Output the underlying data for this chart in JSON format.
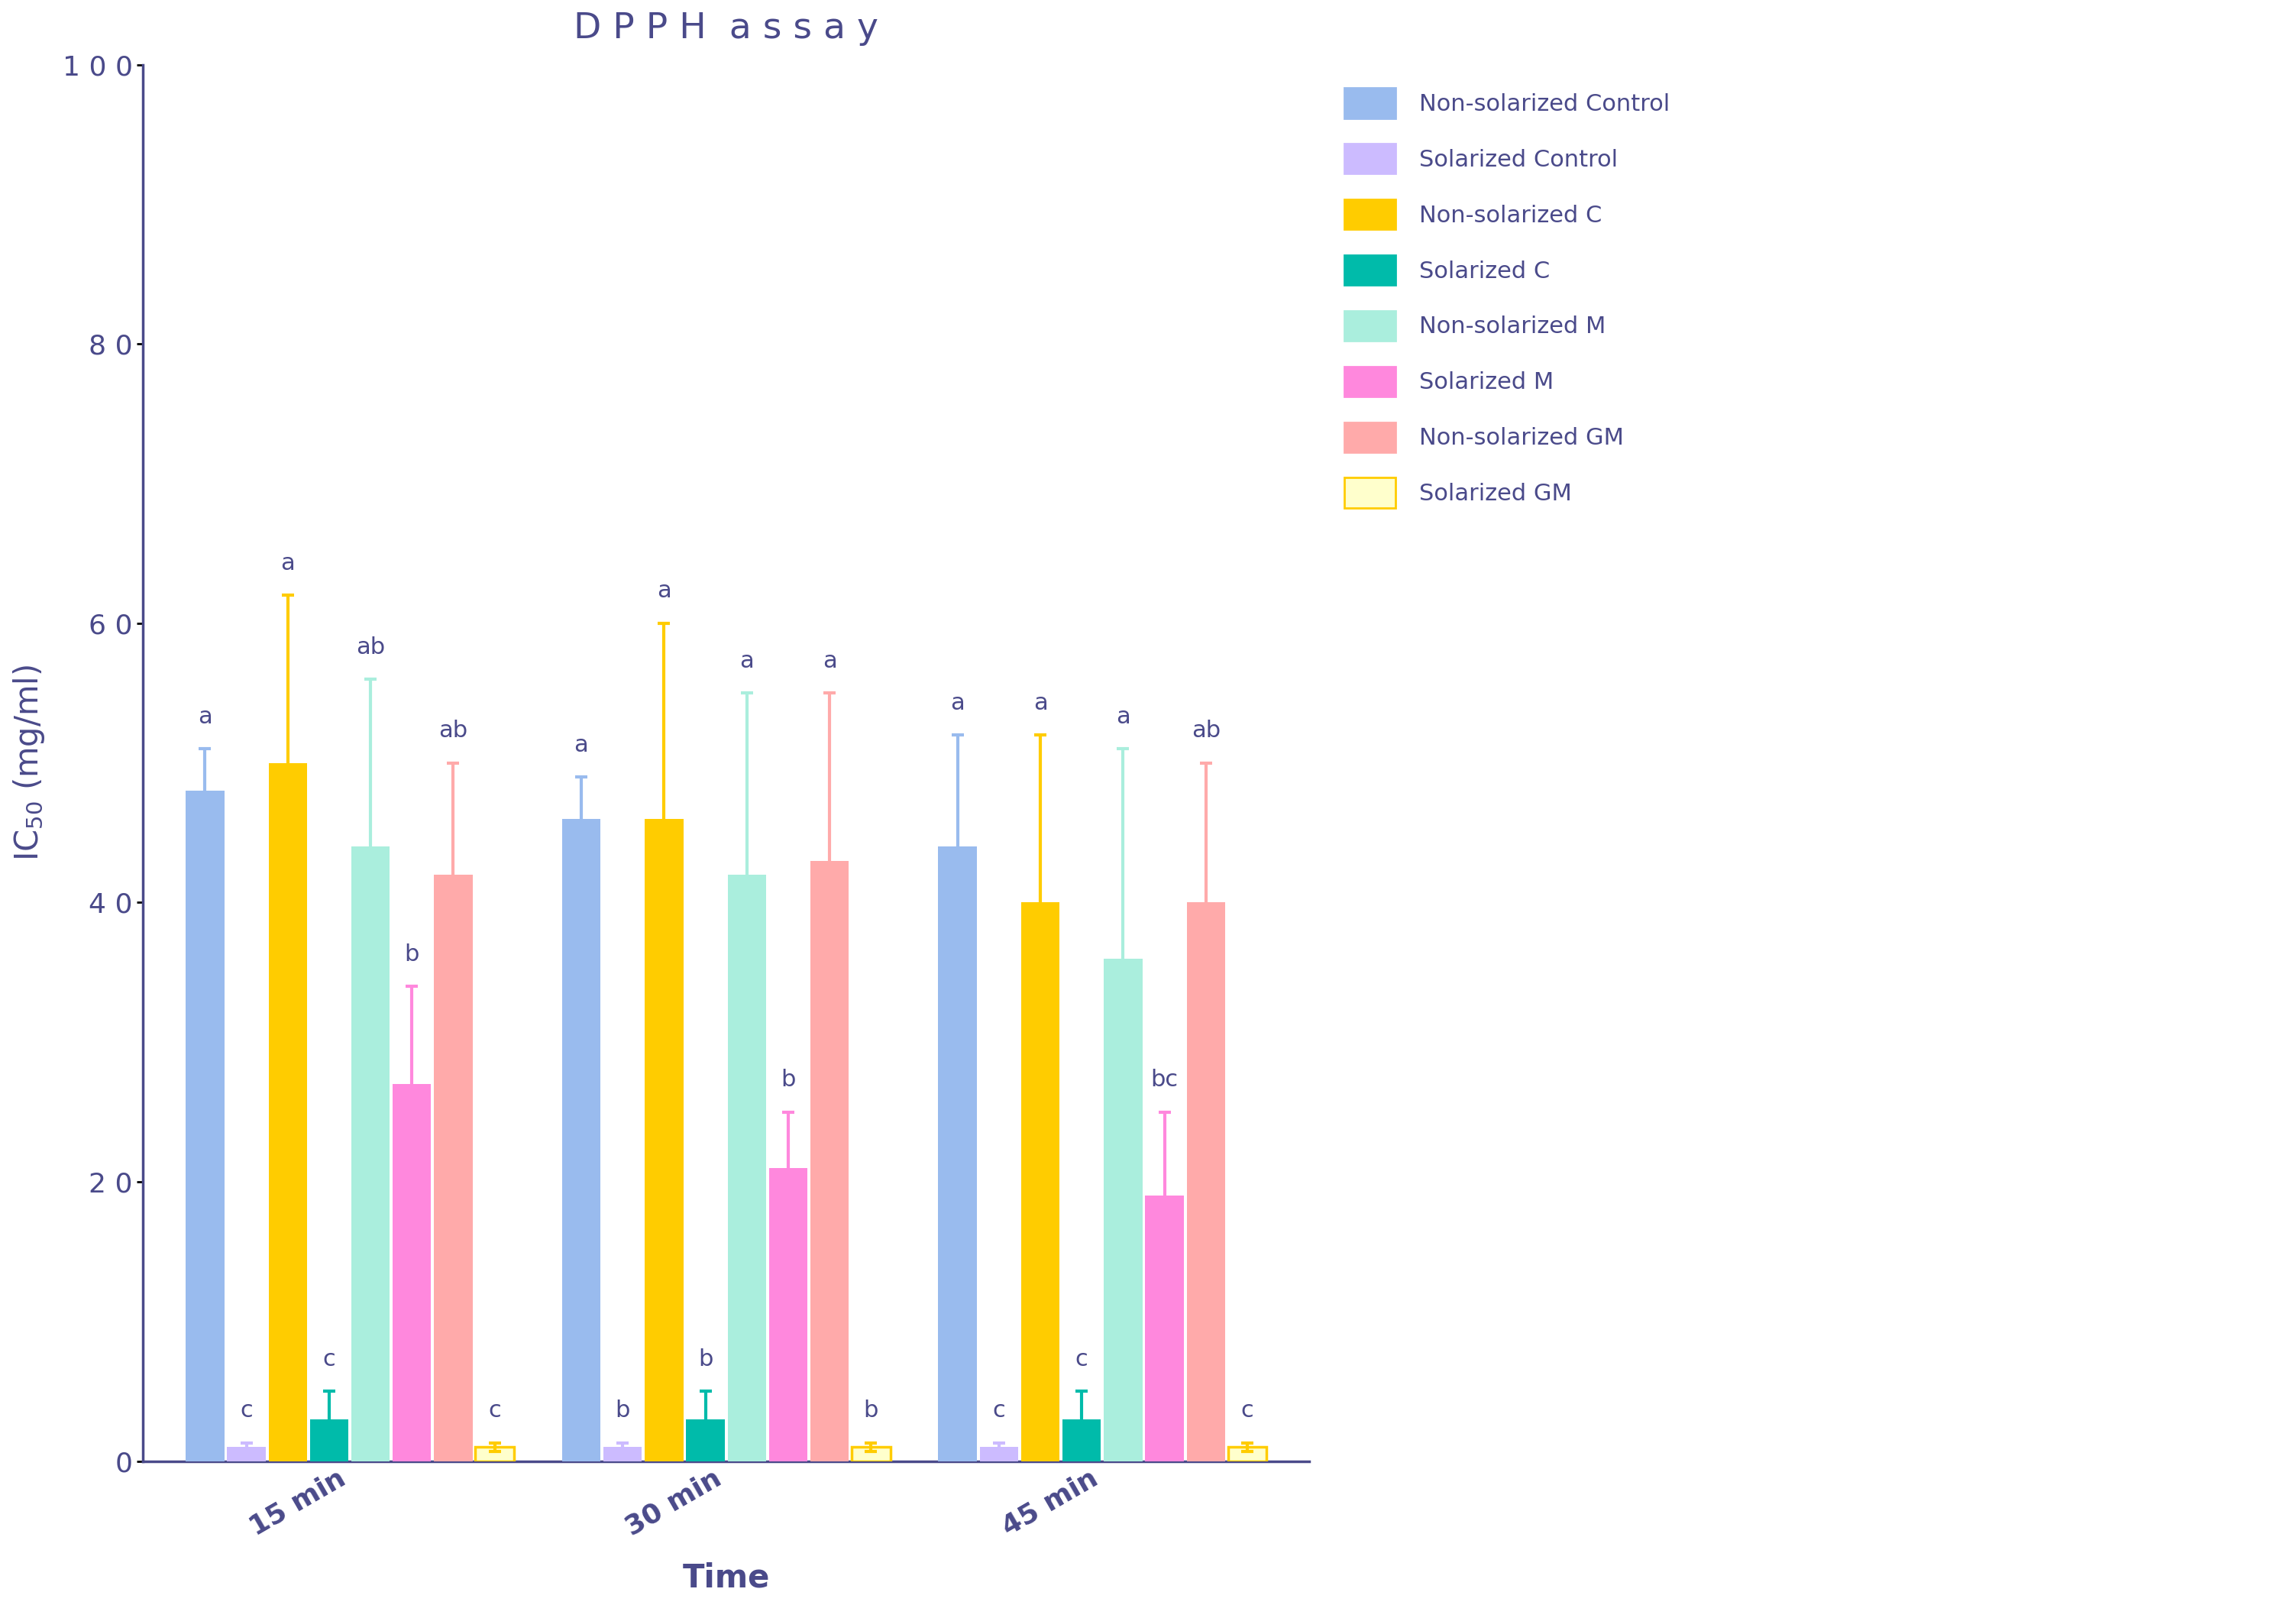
{
  "title": "D P P H  a s s a y",
  "xlabel": "Time",
  "ylim": [
    0,
    100
  ],
  "yticks": [
    0,
    20,
    40,
    60,
    80,
    100
  ],
  "time_labels": [
    "15 min",
    "30 min",
    "45 min"
  ],
  "series_names": [
    "Non-solarized Control",
    "Solarized Control",
    "Non-solarized C",
    "Solarized C",
    "Non-solarized M",
    "Solarized M",
    "Non-solarized GM",
    "Solarized GM"
  ],
  "legend_labels": [
    "Non-solarized Control",
    "Solarized Control",
    "Non-solarized C",
    "Solarized C",
    "Non-solarized M",
    "Solarized M",
    "Non-solarized GM",
    "Solarized GM"
  ],
  "colors": [
    "#99BBEE",
    "#CCBBFF",
    "#FFCC00",
    "#00BBAA",
    "#AAEEDD",
    "#FF88DD",
    "#FFAAAA",
    "#FFFFCC"
  ],
  "edge_colors": [
    "none",
    "none",
    "none",
    "none",
    "none",
    "none",
    "none",
    "#FFCC00"
  ],
  "error_colors": [
    "#99BBEE",
    "#CCBBFF",
    "#FFCC00",
    "#00BBAA",
    "#AAEEDD",
    "#FF88DD",
    "#FFAAAA",
    "#FFCC00"
  ],
  "bar_values": [
    [
      48,
      1,
      50,
      3,
      44,
      27,
      42,
      1
    ],
    [
      46,
      1,
      46,
      3,
      42,
      21,
      43,
      1
    ],
    [
      44,
      1,
      40,
      3,
      36,
      19,
      40,
      1
    ]
  ],
  "bar_errors": [
    [
      3,
      0.3,
      12,
      2,
      12,
      7,
      8,
      0.3
    ],
    [
      3,
      0.3,
      14,
      2,
      13,
      4,
      12,
      0.3
    ],
    [
      8,
      0.3,
      12,
      2,
      15,
      6,
      10,
      0.3
    ]
  ],
  "stat_labels": [
    [
      "a",
      "c",
      "a",
      "c",
      "ab",
      "b",
      "ab",
      "c"
    ],
    [
      "a",
      "b",
      "a",
      "b",
      "a",
      "b",
      "a",
      "b"
    ],
    [
      "a",
      "c",
      "a",
      "c",
      "a",
      "bc",
      "ab",
      "c"
    ]
  ],
  "text_color": "#4A4A8A",
  "background_color": "#FFFFFF",
  "title_fontsize": 34,
  "axis_label_fontsize": 30,
  "tick_label_fontsize": 26,
  "stat_label_fontsize": 22,
  "legend_fontsize": 22
}
